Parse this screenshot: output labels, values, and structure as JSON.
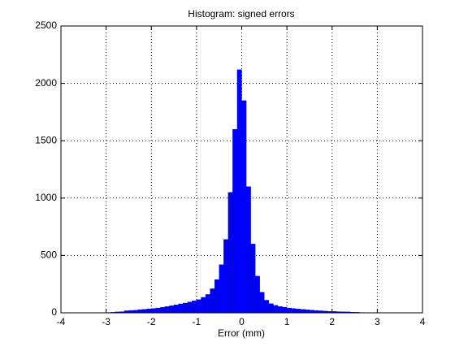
{
  "chart_data": {
    "type": "histogram",
    "title": "Histogram: signed errors",
    "xlabel": "Error (mm)",
    "bins": [
      -3.0,
      -2.9,
      -2.8,
      -2.7,
      -2.6,
      -2.5,
      -2.4,
      -2.3,
      -2.2,
      -2.1,
      -2.0,
      -1.9,
      -1.8,
      -1.7,
      -1.6,
      -1.5,
      -1.4,
      -1.3,
      -1.2,
      -1.1,
      -1.0,
      -0.9,
      -0.8,
      -0.7,
      -0.6,
      -0.5,
      -0.4,
      -0.3,
      -0.2,
      -0.1,
      0.0,
      0.1,
      0.2,
      0.3,
      0.4,
      0.5,
      0.6,
      0.7,
      0.8,
      0.9,
      1.0,
      1.1,
      1.2,
      1.3,
      1.4,
      1.5,
      1.6,
      1.7,
      1.8,
      1.9,
      2.0,
      2.1,
      2.2,
      2.3,
      2.4,
      2.5,
      2.6,
      2.7
    ],
    "values": [
      3,
      5,
      8,
      10,
      18,
      20,
      22,
      28,
      30,
      35,
      38,
      42,
      48,
      55,
      62,
      70,
      78,
      85,
      95,
      105,
      115,
      135,
      160,
      210,
      290,
      420,
      640,
      1050,
      1600,
      2120,
      1850,
      1100,
      600,
      320,
      180,
      110,
      80,
      65,
      55,
      48,
      42,
      38,
      33,
      30,
      27,
      24,
      20,
      18,
      15,
      13,
      12,
      10,
      9,
      8,
      6,
      5,
      3
    ],
    "color": "#0000ff",
    "xlim": [
      -4,
      4
    ],
    "xticks": [
      -4,
      -3,
      -2,
      -1,
      0,
      1,
      2,
      3,
      4
    ],
    "ylim": [
      0,
      2500
    ],
    "yticks": [
      0,
      500,
      1000,
      1500,
      2000,
      2500
    ],
    "grid": true
  }
}
